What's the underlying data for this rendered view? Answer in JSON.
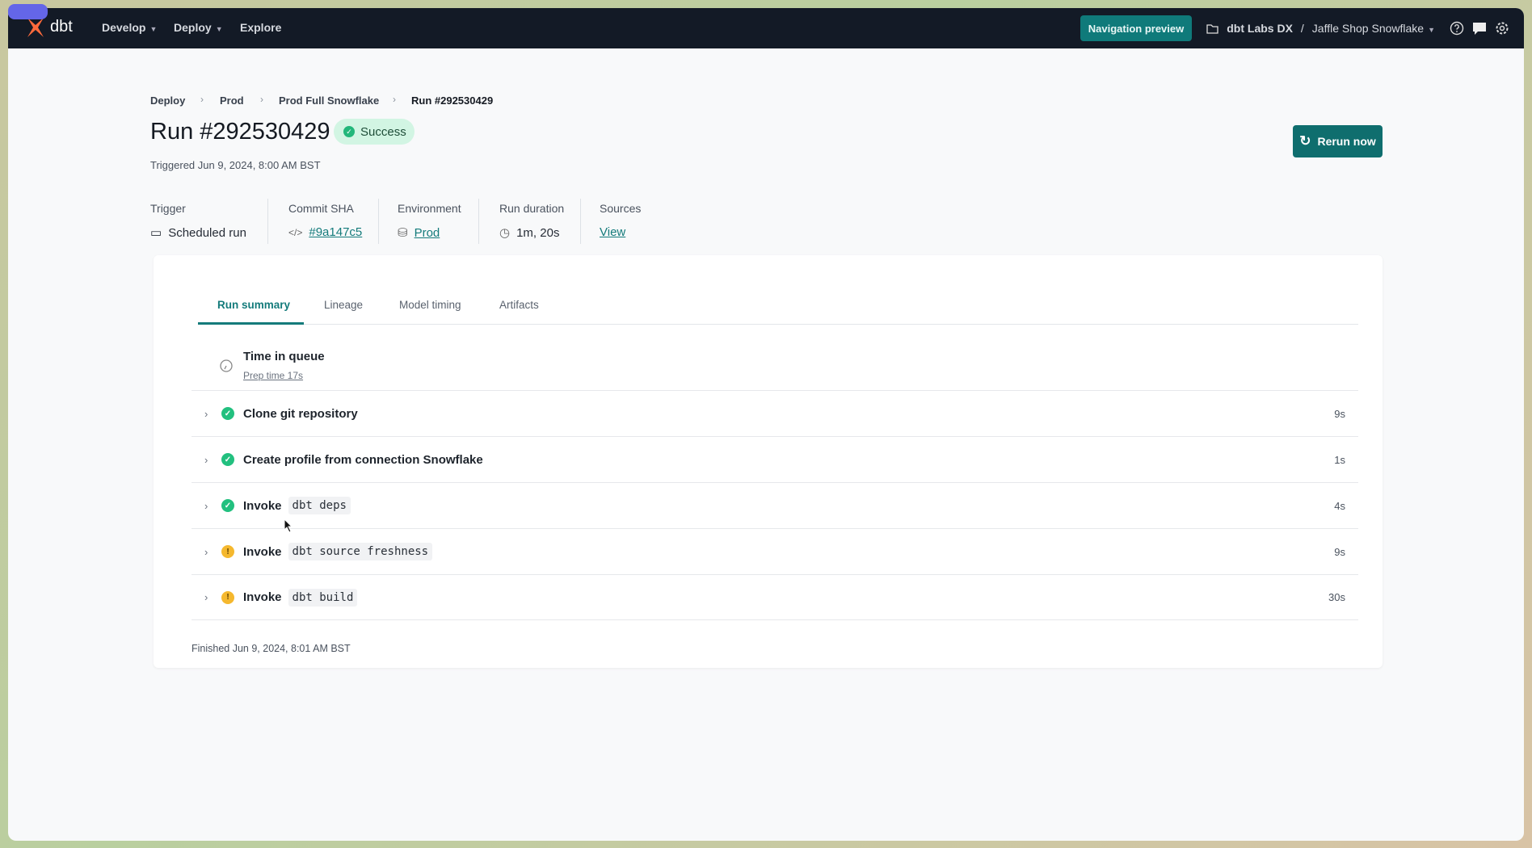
{
  "nav": {
    "logo": "dbt",
    "items": [
      {
        "label": "Develop",
        "chevron": true
      },
      {
        "label": "Deploy",
        "chevron": true
      },
      {
        "label": "Explore",
        "chevron": false
      }
    ],
    "preview_button": "Navigation preview",
    "account": "dbt Labs DX",
    "separator": "/",
    "project": "Jaffle Shop Snowflake"
  },
  "breadcrumb": [
    "Deploy",
    "Prod",
    "Prod Full Snowflake",
    "Run #292530429"
  ],
  "header": {
    "title": "Run #292530429",
    "status": "Success",
    "triggered": "Triggered Jun 9, 2024, 8:00 AM BST",
    "rerun_label": "Rerun now"
  },
  "meta": [
    {
      "label": "Trigger",
      "value": "Scheduled run",
      "icon": "calendar-icon"
    },
    {
      "label": "Commit SHA",
      "value": "#9a147c5",
      "icon": "code-icon",
      "link": true
    },
    {
      "label": "Environment",
      "value": "Prod",
      "icon": "database-icon",
      "link": true
    },
    {
      "label": "Run duration",
      "value": "1m, 20s",
      "icon": "clock-icon"
    },
    {
      "label": "Sources",
      "value": "View",
      "link": true
    }
  ],
  "tabs": [
    "Run summary",
    "Lineage",
    "Model timing",
    "Artifacts"
  ],
  "active_tab": "Run summary",
  "queue": {
    "title": "Time in queue",
    "prep": "Prep time 17s"
  },
  "steps": [
    {
      "status": "success",
      "prefix": "Clone git repository",
      "code": "",
      "duration": "9s"
    },
    {
      "status": "success",
      "prefix": "Create profile from connection Snowflake",
      "code": "",
      "duration": "1s"
    },
    {
      "status": "success",
      "prefix": "Invoke",
      "code": "dbt deps",
      "duration": "4s"
    },
    {
      "status": "warning",
      "prefix": "Invoke",
      "code": "dbt source freshness",
      "duration": "9s"
    },
    {
      "status": "warning",
      "prefix": "Invoke",
      "code": "dbt build",
      "duration": "30s"
    }
  ],
  "finished": "Finished Jun 9, 2024, 8:01 AM BST",
  "colors": {
    "accent": "#0f6e6e",
    "nav_bg": "#131a26",
    "success": "#22c07f",
    "warning": "#f5b82e",
    "logo": "#fe6a3c"
  }
}
